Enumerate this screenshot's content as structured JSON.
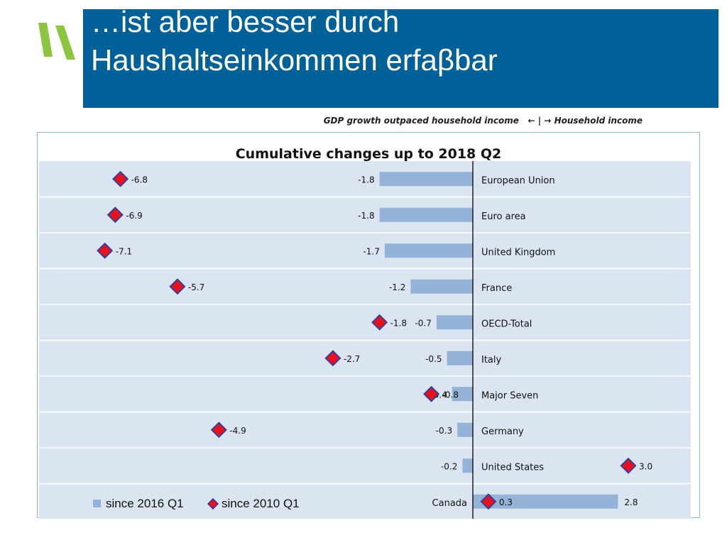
{
  "slide": {
    "title_line1": "…ist aber besser durch",
    "title_line2": "Haushaltseinkommen erfaβbar",
    "subtitle_left": "GDP growth outpaced household income",
    "subtitle_sep": "|",
    "subtitle_right": "Household income"
  },
  "colors": {
    "title_bg": "#006199",
    "accent_green": "#8cc63f",
    "bar": "#95b3d7",
    "marker_fill": "#e8111c",
    "marker_edge": "#3d3d99",
    "plot_bg": "#dbe5f1"
  },
  "chart_data": {
    "type": "bar",
    "orientation": "horizontal",
    "title": "Cumulative changes up to 2018 Q2",
    "categories": [
      "European Union",
      "Euro area",
      "United Kingdom",
      "France",
      "OECD-Total",
      "Italy",
      "Major Seven",
      "Germany",
      "United States",
      "Canada"
    ],
    "series": [
      {
        "name": "since 2016 Q1",
        "kind": "bar",
        "values": [
          -1.8,
          -1.8,
          -1.7,
          -1.2,
          -0.7,
          -0.5,
          -0.4,
          -0.3,
          -0.2,
          2.8
        ]
      },
      {
        "name": "since 2010 Q1",
        "kind": "marker",
        "values": [
          -6.8,
          -6.9,
          -7.1,
          -5.7,
          -1.8,
          -2.7,
          -0.8,
          -4.9,
          3.0,
          0.3
        ]
      }
    ],
    "xlim": [
      -7.5,
      3.5
    ],
    "grid": true,
    "legend_position": "bottom-left"
  }
}
